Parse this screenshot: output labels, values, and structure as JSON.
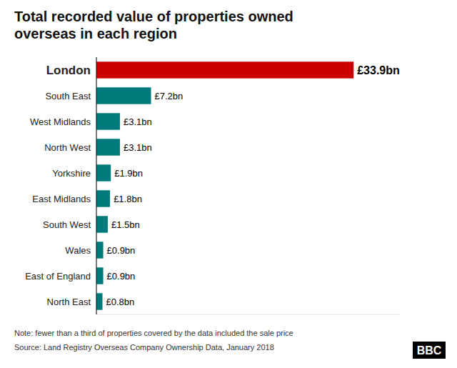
{
  "chart_data": {
    "type": "bar",
    "orientation": "horizontal",
    "title": "Total recorded value of properties owned\noverseas in each region",
    "categories": [
      "London",
      "South East",
      "West Midlands",
      "North West",
      "Yorkshire",
      "East Midlands",
      "South West",
      "Wales",
      "East of England",
      "North East"
    ],
    "values": [
      33.9,
      7.2,
      3.1,
      3.1,
      1.9,
      1.8,
      1.5,
      0.9,
      0.9,
      0.8
    ],
    "value_labels": [
      "£33.9bn",
      "£7.2bn",
      "£3.1bn",
      "£3.1bn",
      "£1.9bn",
      "£1.8bn",
      "£1.5bn",
      "£0.9bn",
      "£0.9bn",
      "£0.8bn"
    ],
    "colors": [
      "#cc0000",
      "#007a7a",
      "#007a7a",
      "#007a7a",
      "#007a7a",
      "#007a7a",
      "#007a7a",
      "#007a7a",
      "#007a7a",
      "#007a7a"
    ],
    "data_labels": true,
    "xlim": [
      0,
      40
    ],
    "tick_labels": "y",
    "grid": false,
    "annotations": [
      "Note: fewer than a third of properties covered by the data included the sale price",
      "Source: Land Registry Overseas Company Ownership Data, January 2018",
      "BBC"
    ]
  }
}
